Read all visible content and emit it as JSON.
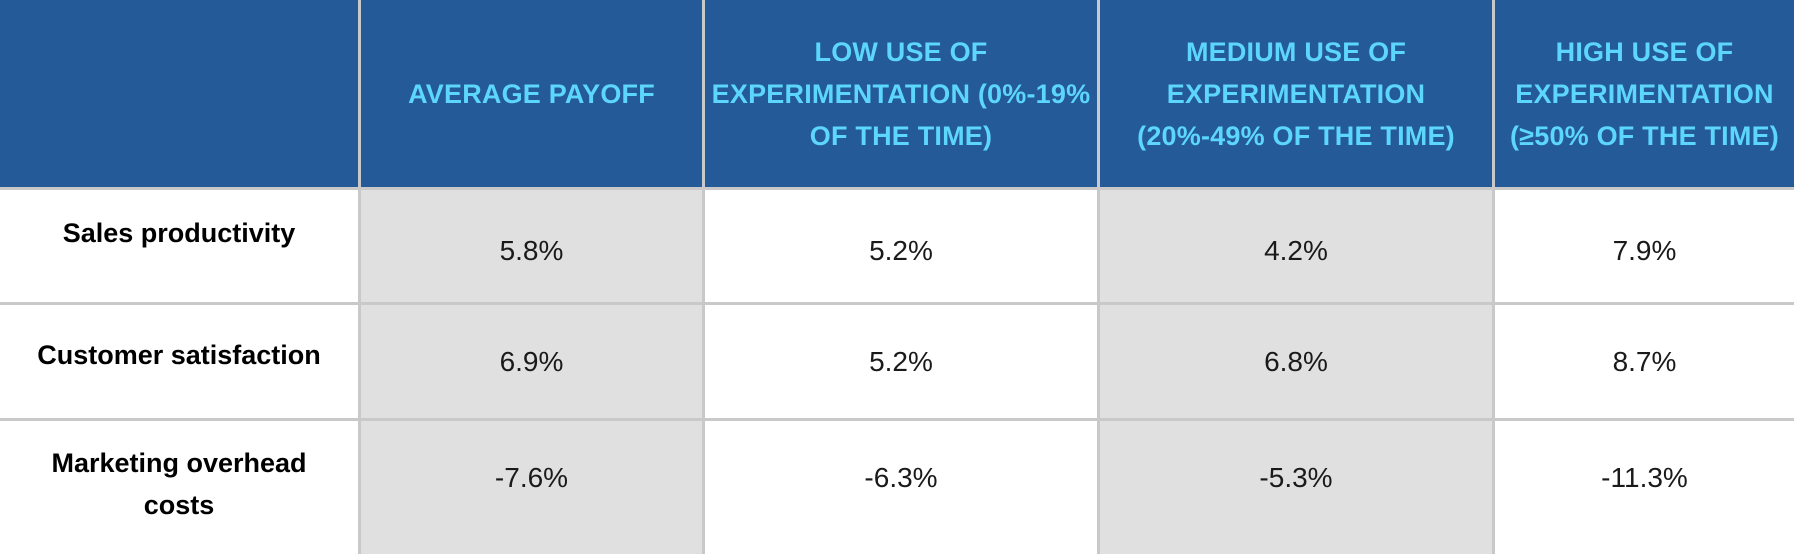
{
  "chart_data": {
    "type": "table",
    "columns": [
      "",
      "AVERAGE PAYOFF",
      "LOW USE OF EXPERIMENTATION (0%-19% OF THE TIME)",
      "MEDIUM USE OF EXPERIMENTATION (20%-49% OF THE TIME)",
      "HIGH USE OF EXPERIMENTATION (≥50% OF THE TIME)"
    ],
    "rows": [
      {
        "label": "Sales productivity",
        "values": [
          "5.8%",
          "5.2%",
          "4.2%",
          "7.9%"
        ]
      },
      {
        "label": "Customer satisfaction",
        "values": [
          "6.9%",
          "5.2%",
          "6.8%",
          "8.7%"
        ]
      },
      {
        "label": "Marketing overhead costs",
        "values": [
          "-7.6%",
          "-6.3%",
          "-5.3%",
          "-11.3%"
        ]
      }
    ]
  },
  "colors": {
    "header_bg": "#245a97",
    "header_text": "#5dd6fb",
    "shaded_cell": "#e0e0e0",
    "gridline": "#c9c9c9"
  }
}
